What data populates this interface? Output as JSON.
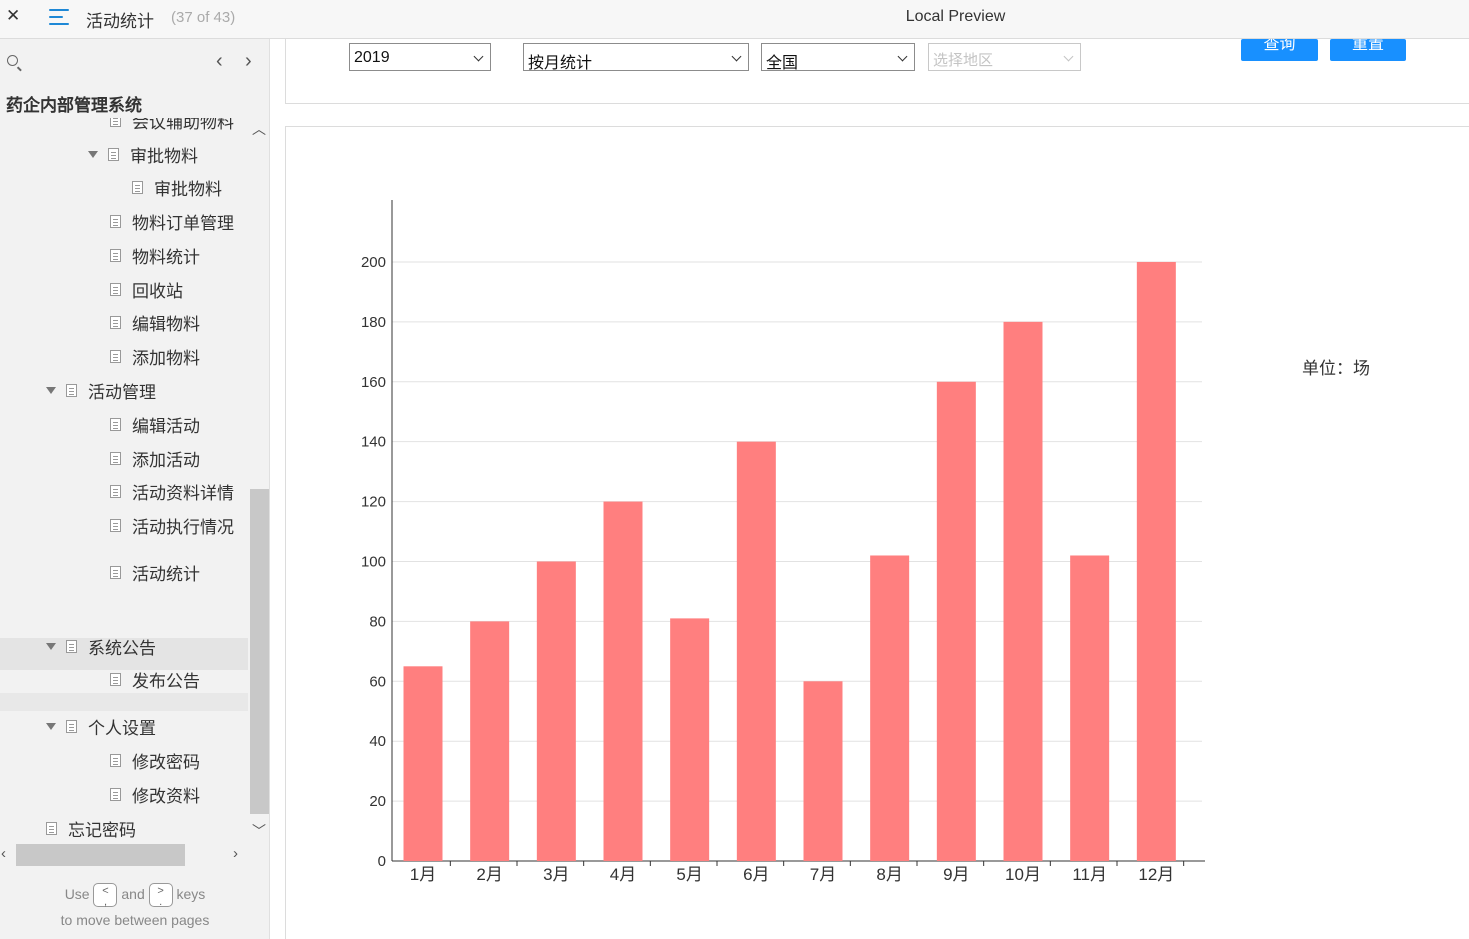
{
  "window": {
    "page_name": "活动统计",
    "page_count": "(37 of 43)",
    "preview_title": "Local Preview"
  },
  "sidebar": {
    "project_title": "药企内部管理系统",
    "tree": [
      {
        "label": "会议辅助物料",
        "level": 2,
        "expandable": false
      },
      {
        "label": "审批物料",
        "level": 2,
        "expandable": true
      },
      {
        "label": "审批物料",
        "level": 3,
        "expandable": false
      },
      {
        "label": "物料订单管理",
        "level": 2,
        "expandable": false
      },
      {
        "label": "物料统计",
        "level": 2,
        "expandable": false
      },
      {
        "label": "回收站",
        "level": 2,
        "expandable": false
      },
      {
        "label": "编辑物料",
        "level": 2,
        "expandable": false
      },
      {
        "label": "添加物料",
        "level": 2,
        "expandable": false
      },
      {
        "label": "活动管理",
        "level": 1,
        "expandable": true
      },
      {
        "label": "编辑活动",
        "level": 2,
        "expandable": false
      },
      {
        "label": "添加活动",
        "level": 2,
        "expandable": false
      },
      {
        "label": "活动资料详情",
        "level": 2,
        "expandable": false
      },
      {
        "label": "活动执行情况",
        "level": 2,
        "expandable": false
      },
      {
        "label": "活动统计",
        "level": 2,
        "expandable": false,
        "selected": true
      },
      {
        "label": "系统公告",
        "level": 1,
        "expandable": true
      },
      {
        "label": "发布公告",
        "level": 2,
        "expandable": false
      },
      {
        "label": "个人设置",
        "level": 1,
        "expandable": true
      },
      {
        "label": "修改密码",
        "level": 2,
        "expandable": false
      },
      {
        "label": "修改资料",
        "level": 2,
        "expandable": false
      },
      {
        "label": "忘记密码",
        "level": 0,
        "expandable": false
      }
    ],
    "hint_use": "Use",
    "hint_and": "and",
    "hint_keys": "keys",
    "hint_line2": "to move between pages",
    "key_prev": "<\n,",
    "key_next": ">\n."
  },
  "filters": {
    "year": "2019",
    "mode": "按月统计",
    "scope": "全国",
    "region_placeholder": "选择地区",
    "query_label": "查询",
    "reset_label": "重置"
  },
  "unit_label": "单位：场",
  "colors": {
    "bar": "#ff7f7f",
    "button": "#1890ff",
    "grid": "#e2e2e2"
  },
  "chart_data": {
    "type": "bar",
    "categories": [
      "1月",
      "2月",
      "3月",
      "4月",
      "5月",
      "6月",
      "7月",
      "8月",
      "9月",
      "10月",
      "11月",
      "12月"
    ],
    "values": [
      65,
      80,
      100,
      120,
      81,
      140,
      60,
      102,
      160,
      180,
      102,
      200
    ],
    "yticks": [
      0,
      20,
      40,
      60,
      80,
      100,
      120,
      140,
      160,
      180,
      200
    ],
    "ylim": [
      0,
      210
    ],
    "grid": true
  }
}
